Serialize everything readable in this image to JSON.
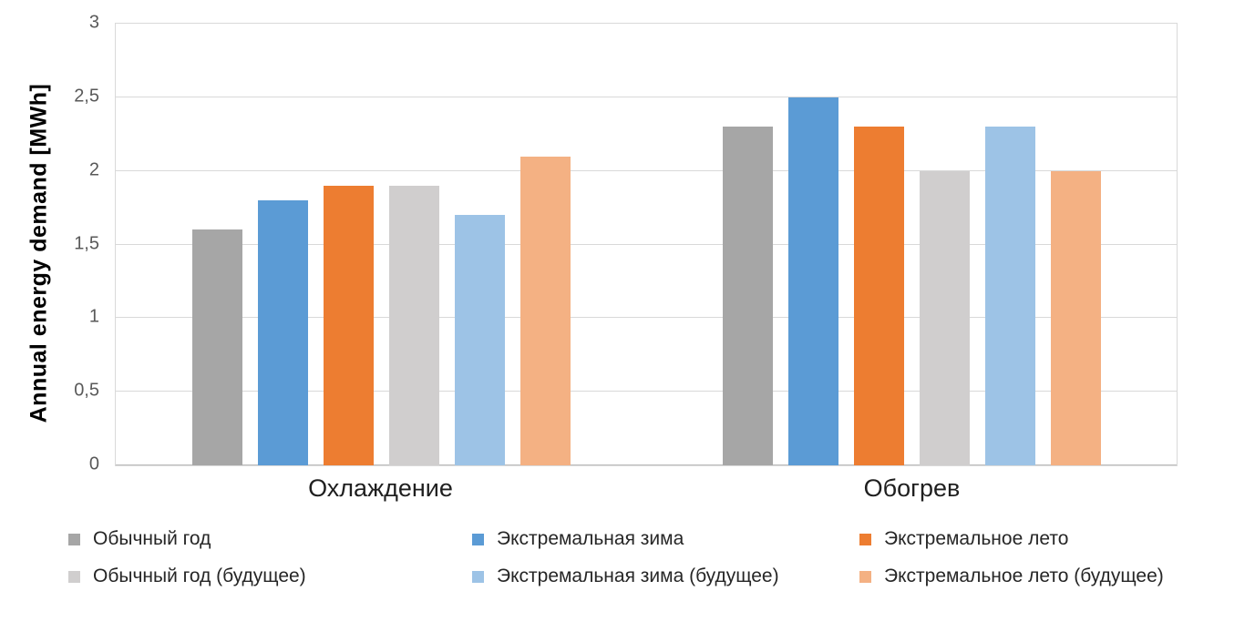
{
  "chart_data": {
    "type": "bar",
    "title": "",
    "xlabel": "",
    "ylabel": "Annual energy demand [MWh]",
    "ylim": [
      0,
      3
    ],
    "yticks": [
      0,
      0.5,
      1,
      1.5,
      2,
      2.5,
      3
    ],
    "ytick_labels": [
      "0",
      "0,5",
      "1",
      "1,5",
      "2",
      "2,5",
      "3"
    ],
    "decimal_separator": ",",
    "categories": [
      "Охлаждение",
      "Обогрев"
    ],
    "series": [
      {
        "name": "Обычный год",
        "color": "#A6A6A6",
        "values": [
          1.6,
          2.3
        ]
      },
      {
        "name": "Экстремальная зима",
        "color": "#5B9BD5",
        "values": [
          1.8,
          2.5
        ]
      },
      {
        "name": "Экстремальное лето",
        "color": "#ED7D31",
        "values": [
          1.9,
          2.3
        ]
      },
      {
        "name": "Обычный год  (будущее)",
        "color": "#D0CECE",
        "values": [
          1.9,
          2.0
        ]
      },
      {
        "name": "Экстремальная зима (будущее)",
        "color": "#9DC3E6",
        "values": [
          1.7,
          2.3
        ]
      },
      {
        "name": "Экстремальное лето  (будущее)",
        "color": "#F4B183",
        "values": [
          2.1,
          2.0
        ]
      }
    ],
    "legend_position": "bottom",
    "legend_rows": [
      [
        0,
        1,
        2
      ],
      [
        3,
        4,
        5
      ]
    ],
    "grid": true,
    "gridline_color": "#D9D9D9",
    "axis_line_color": "#BFBFBF",
    "background_color": "#FFFFFF"
  }
}
